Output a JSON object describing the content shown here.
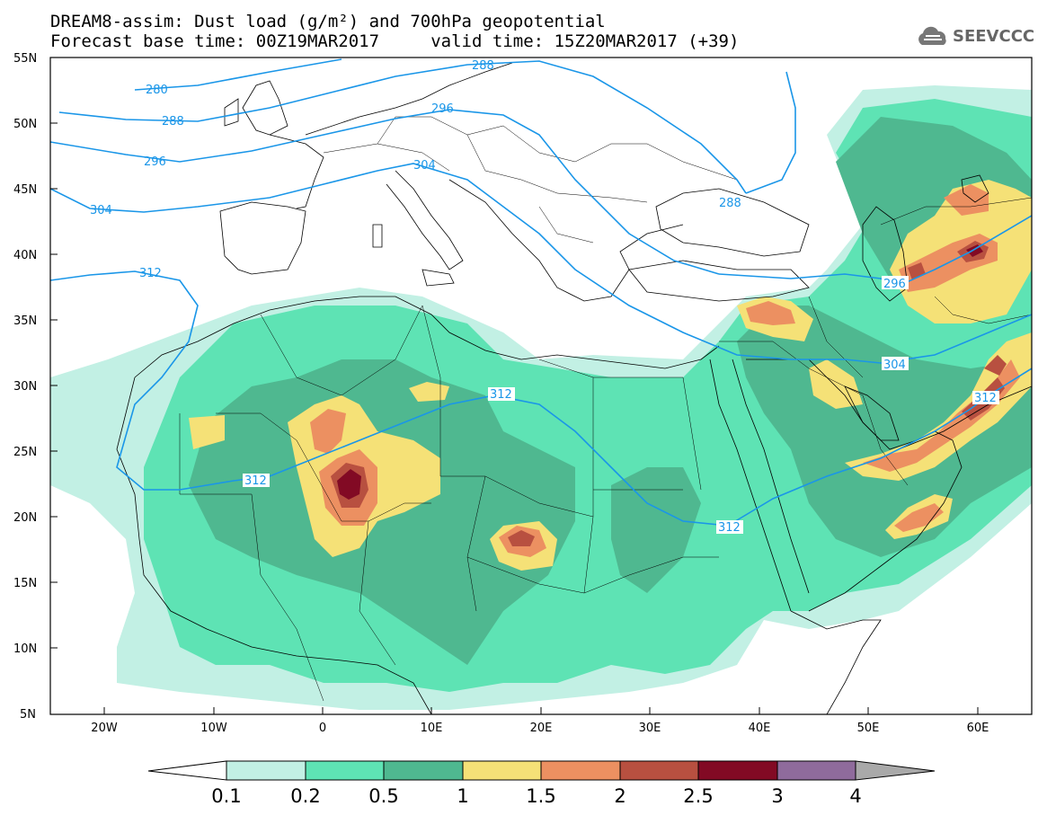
{
  "header": {
    "title_line1": "DREAM8-assim: Dust load (g/m²) and 700hPa geopotential",
    "title_line2": "Forecast base time: 00Z19MAR2017     valid time: 15Z20MAR2017 (+39)",
    "logo_text": "SEEVCCC",
    "logo_icon": "cloud-icon"
  },
  "axes": {
    "lat_labels": [
      "55N",
      "50N",
      "45N",
      "40N",
      "35N",
      "30N",
      "25N",
      "20N",
      "15N",
      "10N",
      "5N"
    ],
    "lon_labels": [
      "20W",
      "10W",
      "0",
      "10E",
      "20E",
      "30E",
      "40E",
      "50E",
      "60E"
    ]
  },
  "geopotential_labels": [
    "280",
    "288",
    "296",
    "304",
    "312",
    "288",
    "296",
    "288",
    "304",
    "296",
    "304",
    "312",
    "312",
    "312",
    "312"
  ],
  "colorbar": {
    "levels": [
      "0.1",
      "0.2",
      "0.5",
      "1",
      "1.5",
      "2",
      "2.5",
      "3",
      "4"
    ],
    "colors": [
      "#c2f0e4",
      "#5ee3b4",
      "#4fb890",
      "#f5e177",
      "#ec9061",
      "#b85040",
      "#820a24",
      "#8f6b9c"
    ],
    "under_color": "#ffffff",
    "over_color": "#a9a9a9"
  },
  "colors": {
    "contour": "#1a96e8",
    "coast": "#000000"
  }
}
